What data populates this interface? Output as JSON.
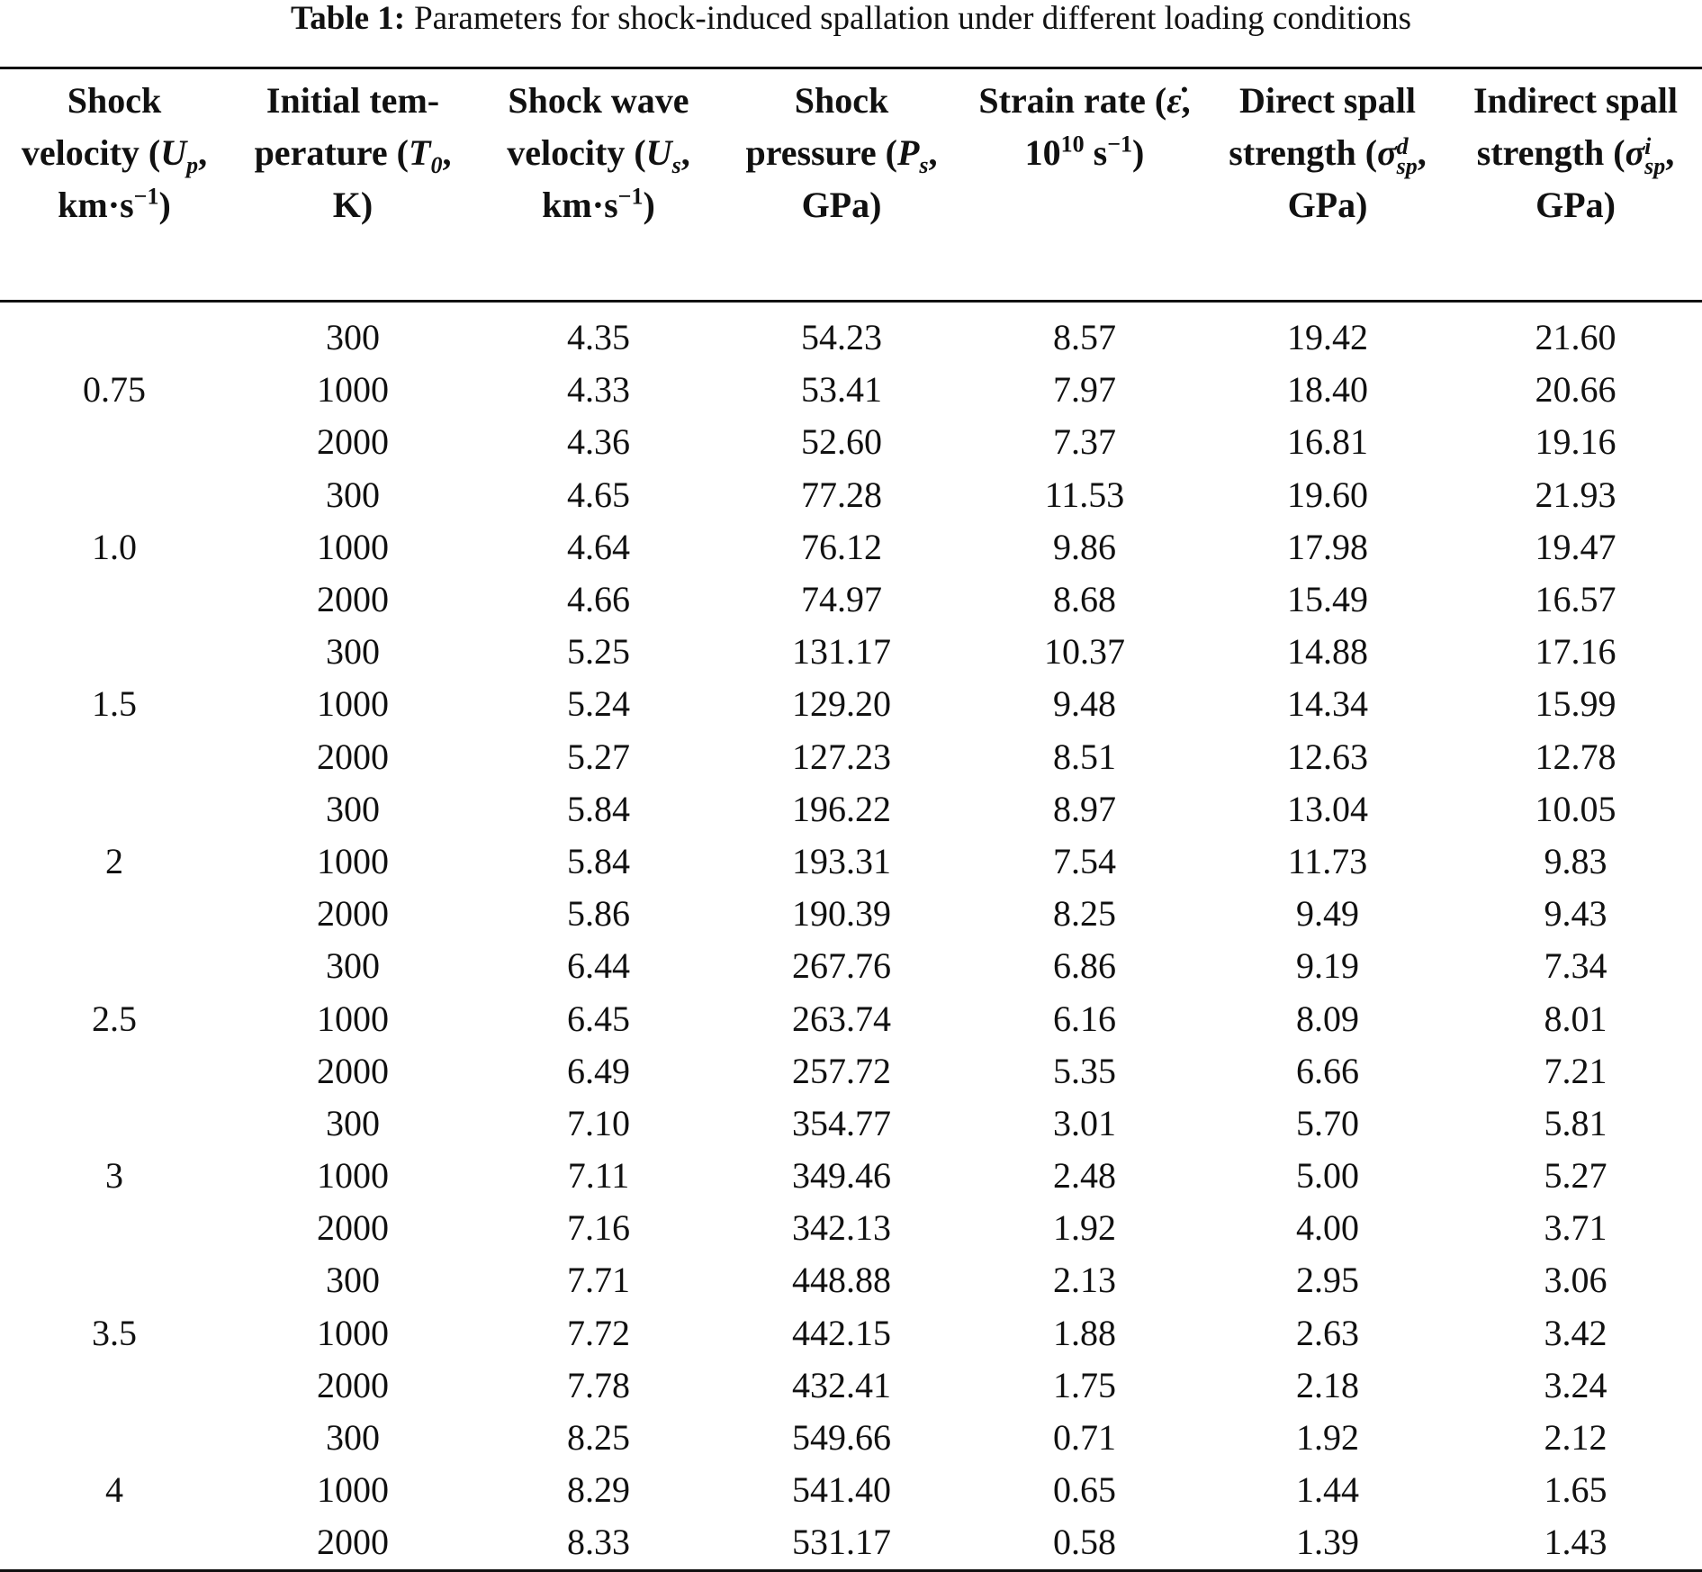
{
  "caption": {
    "label": "Table 1:",
    "text": "Parameters for shock-induced spallation under different loading conditions"
  },
  "table": {
    "headers": [
      [
        {
          "text": "Shock velocity ("
        },
        {
          "text": "U",
          "style": "i"
        },
        {
          "text": "p",
          "style": "sub"
        },
        {
          "text": ", km·s"
        },
        {
          "text": "−1",
          "style": "sup"
        },
        {
          "text": ")"
        }
      ],
      [
        {
          "text": "Initial tem­perature ("
        },
        {
          "text": "T",
          "style": "i"
        },
        {
          "text": "0",
          "style": "sub"
        },
        {
          "text": ", K)"
        }
      ],
      [
        {
          "text": "Shock wave velocity ("
        },
        {
          "text": "U",
          "style": "i"
        },
        {
          "text": "s",
          "style": "sub"
        },
        {
          "text": ", km·s"
        },
        {
          "text": "−1",
          "style": "sup"
        },
        {
          "text": ")"
        }
      ],
      [
        {
          "text": "Shock pressure ("
        },
        {
          "text": "P",
          "style": "i"
        },
        {
          "text": "s",
          "style": "sub"
        },
        {
          "text": ", GPa)"
        }
      ],
      [
        {
          "text": "Strain rate ("
        },
        {
          "text": "ε̇",
          "style": "i"
        },
        {
          "text": ", 10"
        },
        {
          "text": "10",
          "style": "sup"
        },
        {
          "text": " s"
        },
        {
          "text": "−1",
          "style": "sup"
        },
        {
          "text": ")"
        }
      ],
      [
        {
          "text": "Direct spall strength ("
        },
        {
          "text": "σ",
          "style": "i"
        },
        {
          "text": "d",
          "style": "sup"
        },
        {
          "text": "sp",
          "style": "sub"
        },
        {
          "text": ", GPa)"
        }
      ],
      [
        {
          "text": "Indirect spall strength ("
        },
        {
          "text": "σ",
          "style": "i"
        },
        {
          "text": "i",
          "style": "sup"
        },
        {
          "text": "sp",
          "style": "sub"
        },
        {
          "text": ", GPa)"
        }
      ]
    ],
    "groups": [
      {
        "velocity": "0.75",
        "rows": [
          [
            "300",
            "4.35",
            "54.23",
            "8.57",
            "19.42",
            "21.60"
          ],
          [
            "1000",
            "4.33",
            "53.41",
            "7.97",
            "18.40",
            "20.66"
          ],
          [
            "2000",
            "4.36",
            "52.60",
            "7.37",
            "16.81",
            "19.16"
          ]
        ]
      },
      {
        "velocity": "1.0",
        "rows": [
          [
            "300",
            "4.65",
            "77.28",
            "11.53",
            "19.60",
            "21.93"
          ],
          [
            "1000",
            "4.64",
            "76.12",
            "9.86",
            "17.98",
            "19.47"
          ],
          [
            "2000",
            "4.66",
            "74.97",
            "8.68",
            "15.49",
            "16.57"
          ]
        ]
      },
      {
        "velocity": "1.5",
        "rows": [
          [
            "300",
            "5.25",
            "131.17",
            "10.37",
            "14.88",
            "17.16"
          ],
          [
            "1000",
            "5.24",
            "129.20",
            "9.48",
            "14.34",
            "15.99"
          ],
          [
            "2000",
            "5.27",
            "127.23",
            "8.51",
            "12.63",
            "12.78"
          ]
        ]
      },
      {
        "velocity": "2",
        "rows": [
          [
            "300",
            "5.84",
            "196.22",
            "8.97",
            "13.04",
            "10.05"
          ],
          [
            "1000",
            "5.84",
            "193.31",
            "7.54",
            "11.73",
            "9.83"
          ],
          [
            "2000",
            "5.86",
            "190.39",
            "8.25",
            "9.49",
            "9.43"
          ]
        ]
      },
      {
        "velocity": "2.5",
        "rows": [
          [
            "300",
            "6.44",
            "267.76",
            "6.86",
            "9.19",
            "7.34"
          ],
          [
            "1000",
            "6.45",
            "263.74",
            "6.16",
            "8.09",
            "8.01"
          ],
          [
            "2000",
            "6.49",
            "257.72",
            "5.35",
            "6.66",
            "7.21"
          ]
        ]
      },
      {
        "velocity": "3",
        "rows": [
          [
            "300",
            "7.10",
            "354.77",
            "3.01",
            "5.70",
            "5.81"
          ],
          [
            "1000",
            "7.11",
            "349.46",
            "2.48",
            "5.00",
            "5.27"
          ],
          [
            "2000",
            "7.16",
            "342.13",
            "1.92",
            "4.00",
            "3.71"
          ]
        ]
      },
      {
        "velocity": "3.5",
        "rows": [
          [
            "300",
            "7.71",
            "448.88",
            "2.13",
            "2.95",
            "3.06"
          ],
          [
            "1000",
            "7.72",
            "442.15",
            "1.88",
            "2.63",
            "3.42"
          ],
          [
            "2000",
            "7.78",
            "432.41",
            "1.75",
            "2.18",
            "3.24"
          ]
        ]
      },
      {
        "velocity": "4",
        "rows": [
          [
            "300",
            "8.25",
            "549.66",
            "0.71",
            "1.92",
            "2.12"
          ],
          [
            "1000",
            "8.29",
            "541.40",
            "0.65",
            "1.44",
            "1.65"
          ],
          [
            "2000",
            "8.33",
            "531.17",
            "0.58",
            "1.39",
            "1.43"
          ]
        ]
      }
    ]
  }
}
